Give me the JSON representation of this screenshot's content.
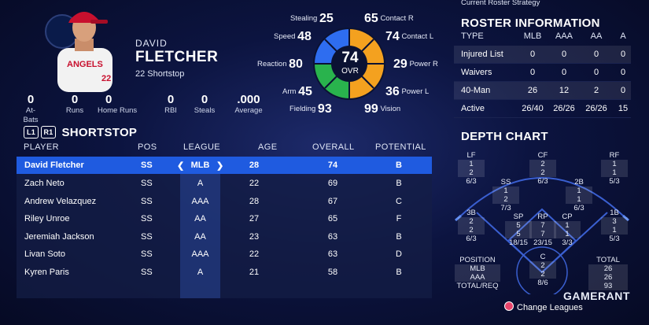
{
  "player": {
    "first_name": "DAVID",
    "last_name": "FLETCHER",
    "number_position": "22 Shortstop",
    "stats": [
      {
        "value": "0",
        "label": "At-Bats"
      },
      {
        "value": "0",
        "label": "Runs"
      },
      {
        "value": "0",
        "label": "Home Runs"
      },
      {
        "value": "0",
        "label": "RBI"
      },
      {
        "value": "0",
        "label": "Steals"
      },
      {
        "value": ".000",
        "label": "Average"
      }
    ]
  },
  "ratings": {
    "ovr": "74",
    "ovr_label": "OVR",
    "stealing": {
      "label": "Stealing",
      "value": "25"
    },
    "speed": {
      "label": "Speed",
      "value": "48"
    },
    "reaction": {
      "label": "Reaction",
      "value": "80"
    },
    "arm": {
      "label": "Arm",
      "value": "45"
    },
    "fielding": {
      "label": "Fielding",
      "value": "93"
    },
    "contact_r": {
      "label": "Contact R",
      "value": "65"
    },
    "contact_l": {
      "label": "Contact L",
      "value": "74"
    },
    "power_r": {
      "label": "Power R",
      "value": "29"
    },
    "power_l": {
      "label": "Power L",
      "value": "36"
    },
    "vision": {
      "label": "Vision",
      "value": "99"
    },
    "colors": {
      "blue": "#2e6df0",
      "green": "#29b34d",
      "orange": "#f4a11f"
    }
  },
  "position_list": {
    "btn_l1": "L1",
    "btn_r1": "R1",
    "title": "SHORTSTOP",
    "headers": {
      "player": "PLAYER",
      "pos": "POS",
      "league": "LEAGUE",
      "age": "AGE",
      "overall": "OVERALL",
      "potential": "POTENTIAL"
    },
    "rows": [
      {
        "player": "David Fletcher",
        "pos": "SS",
        "league": "MLB",
        "age": "28",
        "overall": "74",
        "potential": "B"
      },
      {
        "player": "Zach Neto",
        "pos": "SS",
        "league": "A",
        "age": "22",
        "overall": "69",
        "potential": "B"
      },
      {
        "player": "Andrew Velazquez",
        "pos": "SS",
        "league": "AAA",
        "age": "28",
        "overall": "67",
        "potential": "C"
      },
      {
        "player": "Riley Unroe",
        "pos": "SS",
        "league": "AA",
        "age": "27",
        "overall": "65",
        "potential": "F"
      },
      {
        "player": "Jeremiah Jackson",
        "pos": "SS",
        "league": "AA",
        "age": "23",
        "overall": "63",
        "potential": "B"
      },
      {
        "player": "Livan Soto",
        "pos": "SS",
        "league": "AAA",
        "age": "22",
        "overall": "63",
        "potential": "D"
      },
      {
        "player": "Kyren Paris",
        "pos": "SS",
        "league": "A",
        "age": "21",
        "overall": "58",
        "potential": "B"
      }
    ]
  },
  "roster_info": {
    "strategy_label": "Current Roster Strategy",
    "title": "ROSTER INFORMATION",
    "headers": [
      "TYPE",
      "MLB",
      "AAA",
      "AA",
      "A"
    ],
    "rows": [
      [
        "Injured List",
        "0",
        "0",
        "0",
        "0"
      ],
      [
        "Waivers",
        "0",
        "0",
        "0",
        "0"
      ],
      [
        "40-Man",
        "26",
        "12",
        "2",
        "0"
      ],
      [
        "Active",
        "26/40",
        "26/26",
        "26/26",
        "15"
      ]
    ]
  },
  "depth_chart": {
    "title": "DEPTH CHART",
    "lf": {
      "label": "LF",
      "v1": "1",
      "v2": "2",
      "v3": "6/3"
    },
    "cf": {
      "label": "CF",
      "v1": "2",
      "v2": "2",
      "v3": "6/3"
    },
    "rf": {
      "label": "RF",
      "v1": "1",
      "v2": "1",
      "v3": "5/3"
    },
    "ss": {
      "label": "SS",
      "v1": "1",
      "v2": "2",
      "v3": "7/3"
    },
    "b2": {
      "label": "2B",
      "v1": "1",
      "v2": "1",
      "v3": "6/3"
    },
    "b3": {
      "label": "3B",
      "v1": "2",
      "v2": "2",
      "v3": "6/3"
    },
    "sp": {
      "label": "SP",
      "v1": "5",
      "v2": "5",
      "v3": "18/15"
    },
    "rp": {
      "label": "RP",
      "v1": "7",
      "v2": "7",
      "v3": "23/15"
    },
    "cp": {
      "label": "CP",
      "v1": "1",
      "v2": "1",
      "v3": "3/3"
    },
    "b1": {
      "label": "1B",
      "v1": "3",
      "v2": "1",
      "v3": "5/3"
    },
    "c": {
      "label": "C",
      "v1": "2",
      "v2": "2",
      "v3": "8/6"
    },
    "legend_left": {
      "title": "POSITION",
      "l1": "MLB",
      "l2": "AAA",
      "l3": "TOTAL/REQ"
    },
    "legend_right": {
      "title": "TOTAL",
      "v1": "26",
      "v2": "26",
      "v3": "93"
    }
  },
  "footer": {
    "change_leagues": "Change Leagues",
    "watermark": "GAMERANT"
  }
}
